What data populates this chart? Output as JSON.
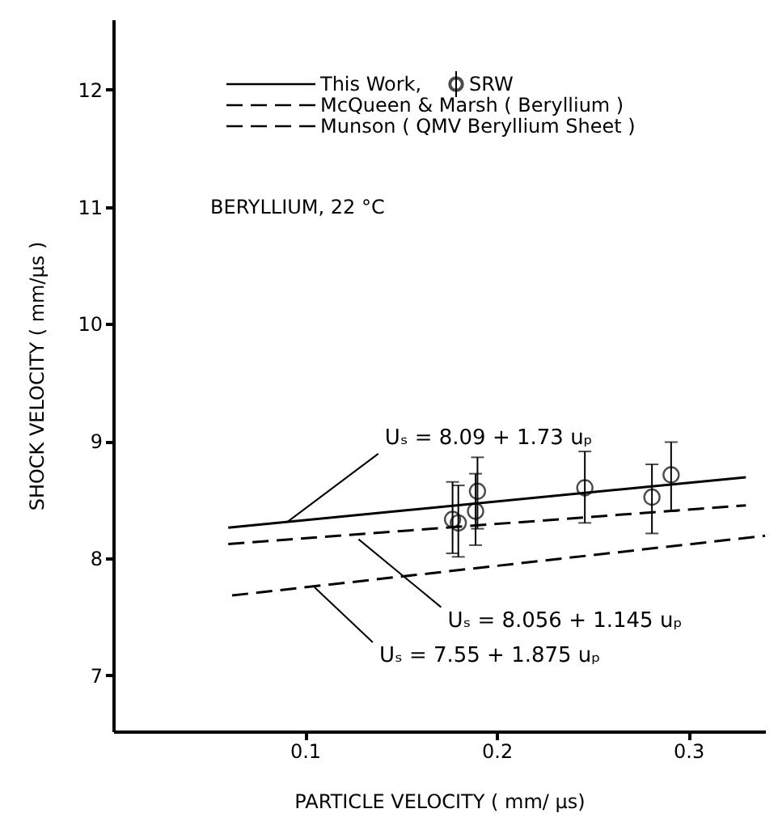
{
  "chart_data": {
    "type": "line",
    "xlabel": "PARTICLE VELOCITY ( mm/ μs)",
    "ylabel": "SHOCK VELOCITY ( mm/μs )",
    "xlim": [
      0.0,
      0.34
    ],
    "ylim": [
      6.52,
      12.6
    ],
    "xticks": [
      0.1,
      0.2,
      0.3
    ],
    "yticks": [
      7,
      8,
      9,
      10,
      11,
      12
    ],
    "grid": false,
    "legend": "top right",
    "series": [
      {
        "name": "This Work,",
        "type": "line",
        "line_style": "solid",
        "color": "#000000",
        "x": [
          0.06,
          0.33
        ],
        "values": [
          8.26,
          8.69
        ]
      },
      {
        "name": "McQueen & Marsh  ( Beryllium )",
        "type": "line",
        "line_style": "dashed",
        "color": "#000000",
        "x": [
          0.06,
          0.33
        ],
        "values": [
          8.12,
          8.45
        ]
      },
      {
        "name": "Munson  ( QMV Beryllium Sheet )",
        "type": "line",
        "line_style": "dashed",
        "color": "#000000",
        "x": [
          0.062,
          0.34
        ],
        "values": [
          7.68,
          8.19
        ]
      },
      {
        "name": "SRW",
        "type": "scatter",
        "marker": "circle",
        "color": "#000000",
        "x": [
          0.177,
          0.18,
          0.189,
          0.19,
          0.246,
          0.281,
          0.291
        ],
        "values": [
          8.33,
          8.3,
          8.4,
          8.57,
          8.6,
          8.52,
          8.71
        ],
        "errors": [
          [
            8.04,
            8.65
          ],
          [
            8.01,
            8.62
          ],
          [
            8.11,
            8.72
          ],
          [
            8.25,
            8.86
          ],
          [
            8.3,
            8.91
          ],
          [
            8.21,
            8.8
          ],
          [
            8.4,
            8.99
          ]
        ]
      }
    ],
    "annotations": [
      "BERYLLIUM, 22 °C",
      {
        "text": "Uₛ = 8.09 + 1.73 uₚ",
        "x": 0.091,
        "y": 8.31
      },
      {
        "text": "Uₛ = 8.056 + 1.145 uₚ",
        "x": 0.128,
        "y": 8.16
      },
      {
        "text": "Uₛ = 7.55 + 1.875 uₚ",
        "x": 0.105,
        "y": 7.75
      }
    ]
  }
}
